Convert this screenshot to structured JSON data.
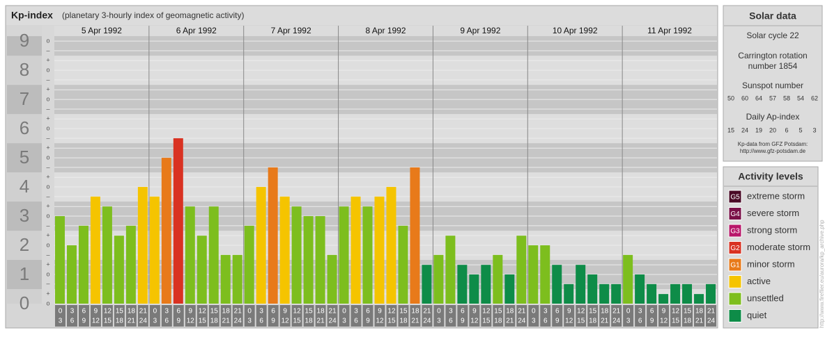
{
  "chart_data": {
    "type": "bar",
    "title": "Kp-index",
    "subtitle": "(planetary 3-hourly index of geomagnetic activity)",
    "ylim": [
      0,
      9.17
    ],
    "yticks": [
      0,
      1,
      2,
      3,
      4,
      5,
      6,
      7,
      8,
      9
    ],
    "yminorticks": [
      {
        "value": 0,
        "label": "o"
      },
      {
        "value": 0.33,
        "label": "+"
      },
      {
        "value": 0.67,
        "label": "–"
      },
      {
        "value": 1,
        "label": "o"
      },
      {
        "value": 1.33,
        "label": "+"
      },
      {
        "value": 1.67,
        "label": "–"
      },
      {
        "value": 2,
        "label": "o"
      },
      {
        "value": 2.33,
        "label": "+"
      },
      {
        "value": 2.67,
        "label": "–"
      },
      {
        "value": 3,
        "label": "o"
      },
      {
        "value": 3.33,
        "label": "+"
      },
      {
        "value": 3.67,
        "label": "–"
      },
      {
        "value": 4,
        "label": "o"
      },
      {
        "value": 4.33,
        "label": "+"
      },
      {
        "value": 4.67,
        "label": "–"
      },
      {
        "value": 5,
        "label": "o"
      },
      {
        "value": 5.33,
        "label": "+"
      },
      {
        "value": 5.67,
        "label": "–"
      },
      {
        "value": 6,
        "label": "o"
      },
      {
        "value": 6.33,
        "label": "+"
      },
      {
        "value": 6.67,
        "label": "–"
      },
      {
        "value": 7,
        "label": "o"
      },
      {
        "value": 7.33,
        "label": "+"
      },
      {
        "value": 7.67,
        "label": "–"
      },
      {
        "value": 8,
        "label": "o"
      },
      {
        "value": 8.33,
        "label": "+"
      },
      {
        "value": 8.67,
        "label": "–"
      },
      {
        "value": 9,
        "label": "o"
      }
    ],
    "hour_slots": [
      {
        "from": "0",
        "to": "3"
      },
      {
        "from": "3",
        "to": "6"
      },
      {
        "from": "6",
        "to": "9"
      },
      {
        "from": "9",
        "to": "12"
      },
      {
        "from": "12",
        "to": "15"
      },
      {
        "from": "15",
        "to": "18"
      },
      {
        "from": "18",
        "to": "21"
      },
      {
        "from": "21",
        "to": "24"
      }
    ],
    "days": [
      {
        "date": "5 Apr 1992",
        "values": [
          3,
          2,
          2.67,
          3.67,
          3.33,
          2.33,
          2.67,
          4
        ],
        "colors": [
          "#7dbe1e",
          "#7dbe1e",
          "#7dbe1e",
          "#f5c400",
          "#7dbe1e",
          "#7dbe1e",
          "#7dbe1e",
          "#f5c400"
        ]
      },
      {
        "date": "6 Apr 1992",
        "values": [
          3.67,
          5,
          5.67,
          3.33,
          2.33,
          3.33,
          1.67,
          1.67
        ],
        "colors": [
          "#f5c400",
          "#e87a1a",
          "#d93222",
          "#7dbe1e",
          "#7dbe1e",
          "#7dbe1e",
          "#7dbe1e",
          "#7dbe1e"
        ]
      },
      {
        "date": "7 Apr 1992",
        "values": [
          2.67,
          4,
          4.67,
          3.67,
          3.33,
          3,
          3,
          1.67
        ],
        "colors": [
          "#7dbe1e",
          "#f5c400",
          "#e87a1a",
          "#f5c400",
          "#7dbe1e",
          "#7dbe1e",
          "#7dbe1e",
          "#7dbe1e"
        ]
      },
      {
        "date": "8 Apr 1992",
        "values": [
          3.33,
          3.67,
          3.33,
          3.67,
          4,
          2.67,
          4.67,
          1.33
        ],
        "colors": [
          "#7dbe1e",
          "#f5c400",
          "#7dbe1e",
          "#f5c400",
          "#f5c400",
          "#7dbe1e",
          "#e87a1a",
          "#0e8c48"
        ]
      },
      {
        "date": "9 Apr 1992",
        "values": [
          1.67,
          2.33,
          1.33,
          1,
          1.33,
          1.67,
          1,
          2.33
        ],
        "colors": [
          "#7dbe1e",
          "#7dbe1e",
          "#0e8c48",
          "#0e8c48",
          "#0e8c48",
          "#7dbe1e",
          "#0e8c48",
          "#7dbe1e"
        ]
      },
      {
        "date": "10 Apr 1992",
        "values": [
          2,
          2,
          1.33,
          0.67,
          1.33,
          1,
          0.67,
          0.67
        ],
        "colors": [
          "#7dbe1e",
          "#7dbe1e",
          "#0e8c48",
          "#0e8c48",
          "#0e8c48",
          "#0e8c48",
          "#0e8c48",
          "#0e8c48"
        ]
      },
      {
        "date": "11 Apr 1992",
        "values": [
          1.67,
          1,
          0.67,
          0.33,
          0.67,
          0.67,
          0.33,
          0.67
        ],
        "colors": [
          "#7dbe1e",
          "#0e8c48",
          "#0e8c48",
          "#0e8c48",
          "#0e8c48",
          "#0e8c48",
          "#0e8c48",
          "#0e8c48"
        ]
      }
    ],
    "grid": true
  },
  "solar_data": {
    "title": "Solar data",
    "cycle": "Solar cycle 22",
    "carrington": [
      "Carrington rotation",
      "number 1854"
    ],
    "sunspot_label": "Sunspot number",
    "sunspot": [
      50,
      60,
      64,
      57,
      58,
      54,
      62
    ],
    "ap_label": "Daily Ap-index",
    "ap": [
      15,
      24,
      19,
      20,
      6,
      5,
      3
    ],
    "source": [
      "Kp-data from GFZ Potsdam:",
      "http://www.gfz-potsdam.de"
    ]
  },
  "activity_levels": {
    "title": "Activity levels",
    "items": [
      {
        "badge": "G5",
        "name": "extreme storm",
        "color": "#4a0a26"
      },
      {
        "badge": "G4",
        "name": "severe storm",
        "color": "#7a1048"
      },
      {
        "badge": "G3",
        "name": "strong storm",
        "color": "#b8176a"
      },
      {
        "badge": "G2",
        "name": "moderate storm",
        "color": "#d93222"
      },
      {
        "badge": "G1",
        "name": "minor storm",
        "color": "#e87a1a"
      },
      {
        "name": "active",
        "color": "#f5c400"
      },
      {
        "name": "unsettled",
        "color": "#7dbe1e"
      },
      {
        "name": "quiet",
        "color": "#0e8c48"
      }
    ]
  },
  "credit": "http://www.fireflier.eu/aurora/kp_archive.php"
}
